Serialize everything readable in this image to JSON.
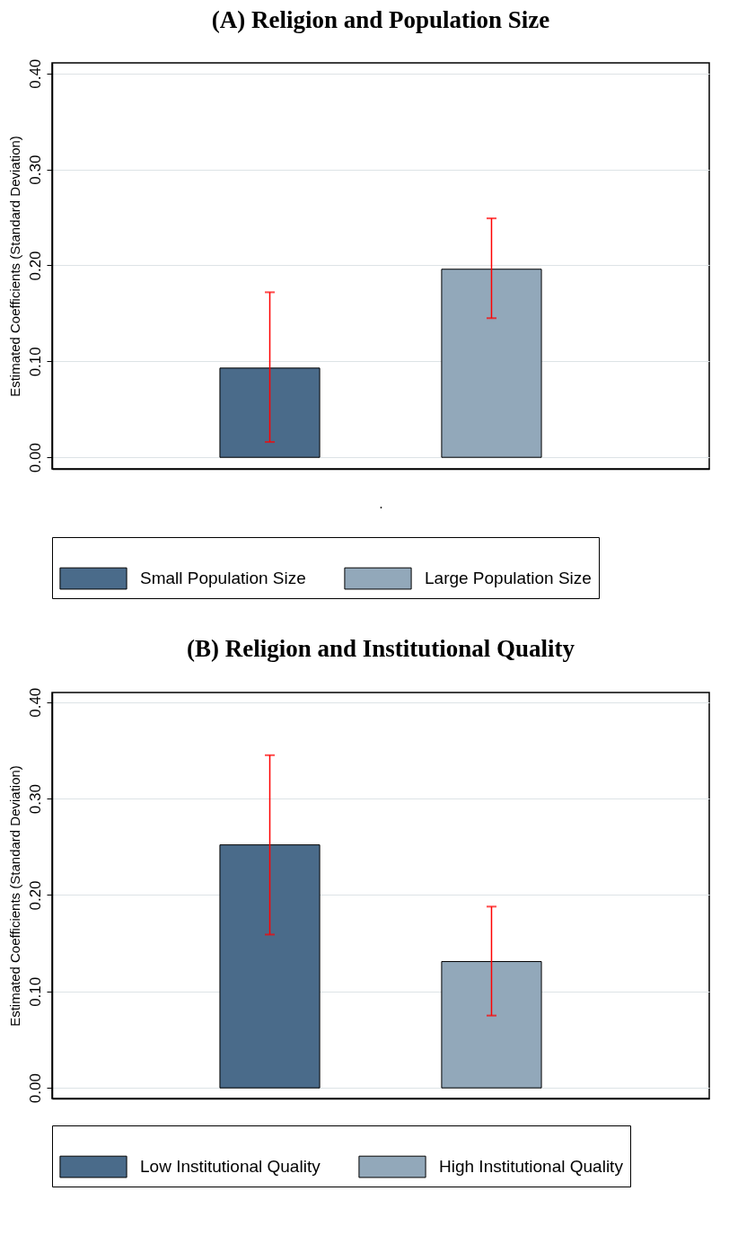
{
  "chart_data": [
    {
      "type": "bar",
      "title": "(A) Religion and Population Size",
      "xlabel": ".",
      "ylabel": "Estimated Coefficients (Standard Deviation)",
      "categories": [
        null
      ],
      "series": [
        {
          "name": "Small Population Size",
          "color": "#4a6b8a",
          "values": [
            0.093
          ],
          "errors": [
            [
              0.016,
              0.172
            ]
          ]
        },
        {
          "name": "Large Population Size",
          "color": "#92a8ba",
          "values": [
            0.196
          ],
          "errors": [
            [
              0.145,
              0.249
            ]
          ]
        }
      ],
      "ylim": [
        -0.012,
        0.411
      ],
      "yticks": [
        {
          "value": 0,
          "label": "0.00"
        },
        {
          "value": 0.1,
          "label": "0.10"
        },
        {
          "value": 0.2,
          "label": "0.20"
        },
        {
          "value": 0.3,
          "label": "0.30"
        },
        {
          "value": 0.4,
          "label": "0.40"
        }
      ],
      "grid": "y",
      "legend": "bottom"
    },
    {
      "type": "bar",
      "title": "(B) Religion and Institutional Quality",
      "ylabel": "Estimated Coefficients (Standard Deviation)",
      "categories": [
        null
      ],
      "series": [
        {
          "name": "Low Institutional Quality",
          "color": "#4a6b8a",
          "values": [
            0.252
          ],
          "errors": [
            [
              0.159,
              0.345
            ]
          ]
        },
        {
          "name": "High Institutional Quality",
          "color": "#92a8ba",
          "values": [
            0.131
          ],
          "errors": [
            [
              0.075,
              0.188
            ]
          ]
        }
      ],
      "ylim": [
        -0.011,
        0.41
      ],
      "yticks": [
        {
          "value": 0,
          "label": "0.00"
        },
        {
          "value": 0.1,
          "label": "0.10"
        },
        {
          "value": 0.2,
          "label": "0.20"
        },
        {
          "value": 0.3,
          "label": "0.30"
        },
        {
          "value": 0.4,
          "label": "0.40"
        }
      ],
      "grid": "y",
      "legend": "bottom"
    }
  ]
}
